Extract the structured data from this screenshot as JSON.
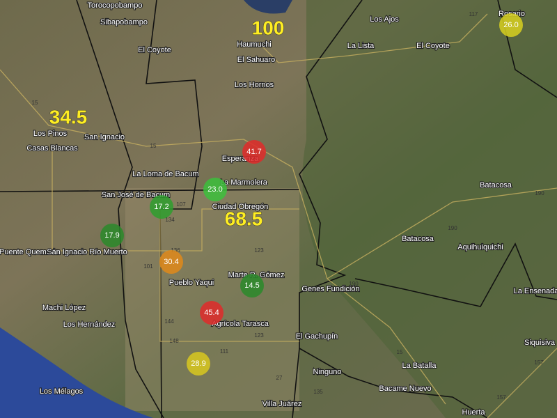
{
  "big_labels": [
    "100",
    "34.5",
    "68.5"
  ],
  "markers": [
    {
      "value": 41.7,
      "color": "#e02a2a"
    },
    {
      "value": 23,
      "label": "23.0",
      "color": "#3cc03c"
    },
    {
      "value": 17.2,
      "color": "#2e9e2e"
    },
    {
      "value": 17.9,
      "color": "#2a8a2a"
    },
    {
      "value": 30.4,
      "color": "#e08a1a"
    },
    {
      "value": 14.5,
      "color": "#2a8a2a"
    },
    {
      "value": 45.4,
      "color": "#e02a2a"
    },
    {
      "value": 28.9,
      "color": "#d8c81e"
    },
    {
      "value": 26,
      "label": "26.0",
      "color": "#d8d020"
    }
  ],
  "places": [
    "Torocopobampo",
    "Sibapobampo",
    "El Coyote",
    "Haumuchi",
    "El Sahuaro",
    "Los Hornos",
    "Los Ajos",
    "La Lista",
    "El Coyote",
    "Rosario",
    "Los Pinos",
    "San Ignacio",
    "Casas Blancas",
    "Esperanza",
    "La Loma de Bacum",
    "La Marmolera",
    "San José de Bacum",
    "Ciudad Obregón",
    "Batacosa",
    "Batacosa",
    "Puente Quemado",
    "San Ignacio Río Muerto",
    "Pueblo Yaqui",
    "Marte R. Gómez",
    "Aquihuiquichi",
    "Genes Fundición",
    "La Ensenada",
    "Machi López",
    "Los Hernández",
    "Agrícola Tarasca",
    "El Gachupín",
    "Siquisiva",
    "La Batalla",
    "Ninguno",
    "Bacame Nuevo",
    "Los Mélagos",
    "Villa Juárez",
    "Huerta"
  ],
  "road_shields": [
    "15",
    "117",
    "15",
    "134",
    "107",
    "101",
    "136",
    "123",
    "190",
    "190",
    "190",
    "144",
    "148",
    "111",
    "123",
    "15",
    "157",
    "157",
    "27",
    "135"
  ]
}
